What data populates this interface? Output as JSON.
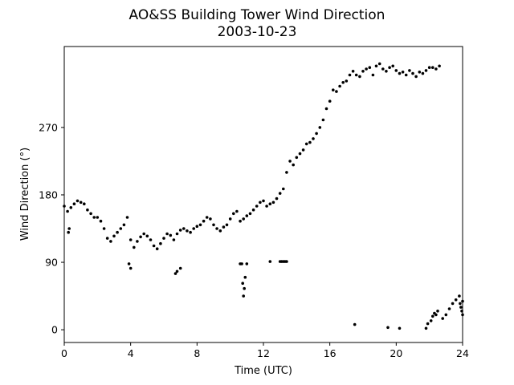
{
  "chart_data": {
    "type": "scatter",
    "title_line1": "AO&SS Building Tower Wind Direction",
    "title_line2": "2003-10-23",
    "xlabel": "Time (UTC)",
    "ylabel": "Wind Direction (°)",
    "xlim": [
      0,
      24
    ],
    "ylim": [
      -17,
      378
    ],
    "xticks": [
      0,
      4,
      8,
      12,
      16,
      20,
      24
    ],
    "yticks": [
      0,
      90,
      180,
      270
    ],
    "grid": false,
    "marker_color": "#000000",
    "series": [
      {
        "x": [
          0.0,
          0.2,
          0.4,
          0.6,
          0.8,
          1.0,
          1.2,
          1.4,
          1.6,
          1.8,
          2.0,
          2.2,
          2.4,
          2.6,
          2.8,
          3.0,
          3.2,
          3.4,
          3.6,
          3.8,
          4.0,
          4.2,
          4.4,
          4.6,
          4.8,
          5.0,
          5.2,
          5.4,
          5.6,
          5.8,
          6.0,
          6.2,
          6.4,
          6.6,
          6.8,
          7.0,
          7.2,
          7.4,
          7.6,
          7.8,
          8.0,
          8.2,
          8.4,
          8.6,
          8.8,
          9.0,
          9.2,
          9.4,
          9.6,
          9.8,
          10.0,
          10.2,
          10.4,
          10.6,
          10.8,
          11.0,
          11.2,
          11.4,
          11.6,
          11.8,
          12.0,
          12.2,
          12.4,
          12.6,
          12.8,
          13.0,
          13.2,
          13.4,
          13.6,
          13.8,
          14.0,
          14.2,
          14.4,
          14.6,
          14.8,
          15.0,
          15.2,
          15.4,
          15.6,
          15.8,
          16.0,
          16.2,
          16.4,
          16.6,
          16.8,
          17.0,
          17.2,
          17.4,
          17.6,
          17.8,
          18.0,
          18.2,
          18.4,
          18.6,
          18.8,
          19.0,
          19.2,
          19.4,
          19.6,
          19.8,
          20.0,
          20.2,
          20.4,
          20.6,
          20.8,
          21.0,
          21.2,
          21.4,
          21.6,
          21.8,
          22.0,
          22.2,
          22.4,
          22.6,
          22.8,
          23.0,
          23.2,
          23.4,
          23.6,
          23.8,
          24.0
        ],
        "y": [
          165,
          158,
          163,
          168,
          172,
          170,
          168,
          160,
          155,
          150,
          150,
          145,
          135,
          122,
          118,
          125,
          130,
          135,
          140,
          150,
          120,
          110,
          118,
          124,
          128,
          125,
          120,
          112,
          108,
          115,
          122,
          128,
          126,
          120,
          128,
          133,
          135,
          132,
          130,
          135,
          138,
          140,
          145,
          150,
          148,
          140,
          135,
          132,
          137,
          140,
          148,
          155,
          158,
          145,
          148,
          152,
          155,
          160,
          165,
          170,
          172,
          165,
          168,
          170,
          175,
          182,
          188,
          210,
          225,
          220,
          230,
          235,
          240,
          248,
          250,
          255,
          262,
          270,
          280,
          295,
          305,
          320,
          318,
          325,
          330,
          332,
          340,
          345,
          340,
          338,
          345,
          348,
          350,
          340,
          352,
          355,
          348,
          345,
          350,
          352,
          346,
          342,
          344,
          340,
          346,
          342,
          338,
          344,
          342,
          346,
          350,
          350,
          348,
          352,
          15,
          20,
          28,
          35,
          40,
          45,
          38
        ]
      },
      {
        "x": [
          10.6,
          10.7,
          10.75,
          10.8,
          10.85,
          10.9,
          11.0,
          12.4,
          13.0,
          13.1,
          13.2,
          13.3,
          13.4,
          17.5,
          19.5,
          20.2,
          21.8,
          21.9,
          22.1,
          22.2,
          22.3,
          22.4,
          22.5,
          23.85,
          23.9,
          23.95,
          24.0,
          3.9,
          4.0,
          6.7,
          6.8,
          7.0,
          0.3,
          0.25
        ],
        "y": [
          88,
          88,
          62,
          45,
          55,
          70,
          88,
          91,
          91,
          91,
          91,
          91,
          91,
          7,
          3,
          2,
          2,
          8,
          12,
          18,
          22,
          20,
          25,
          35,
          30,
          25,
          20,
          88,
          82,
          75,
          78,
          82,
          135,
          130
        ]
      }
    ]
  }
}
